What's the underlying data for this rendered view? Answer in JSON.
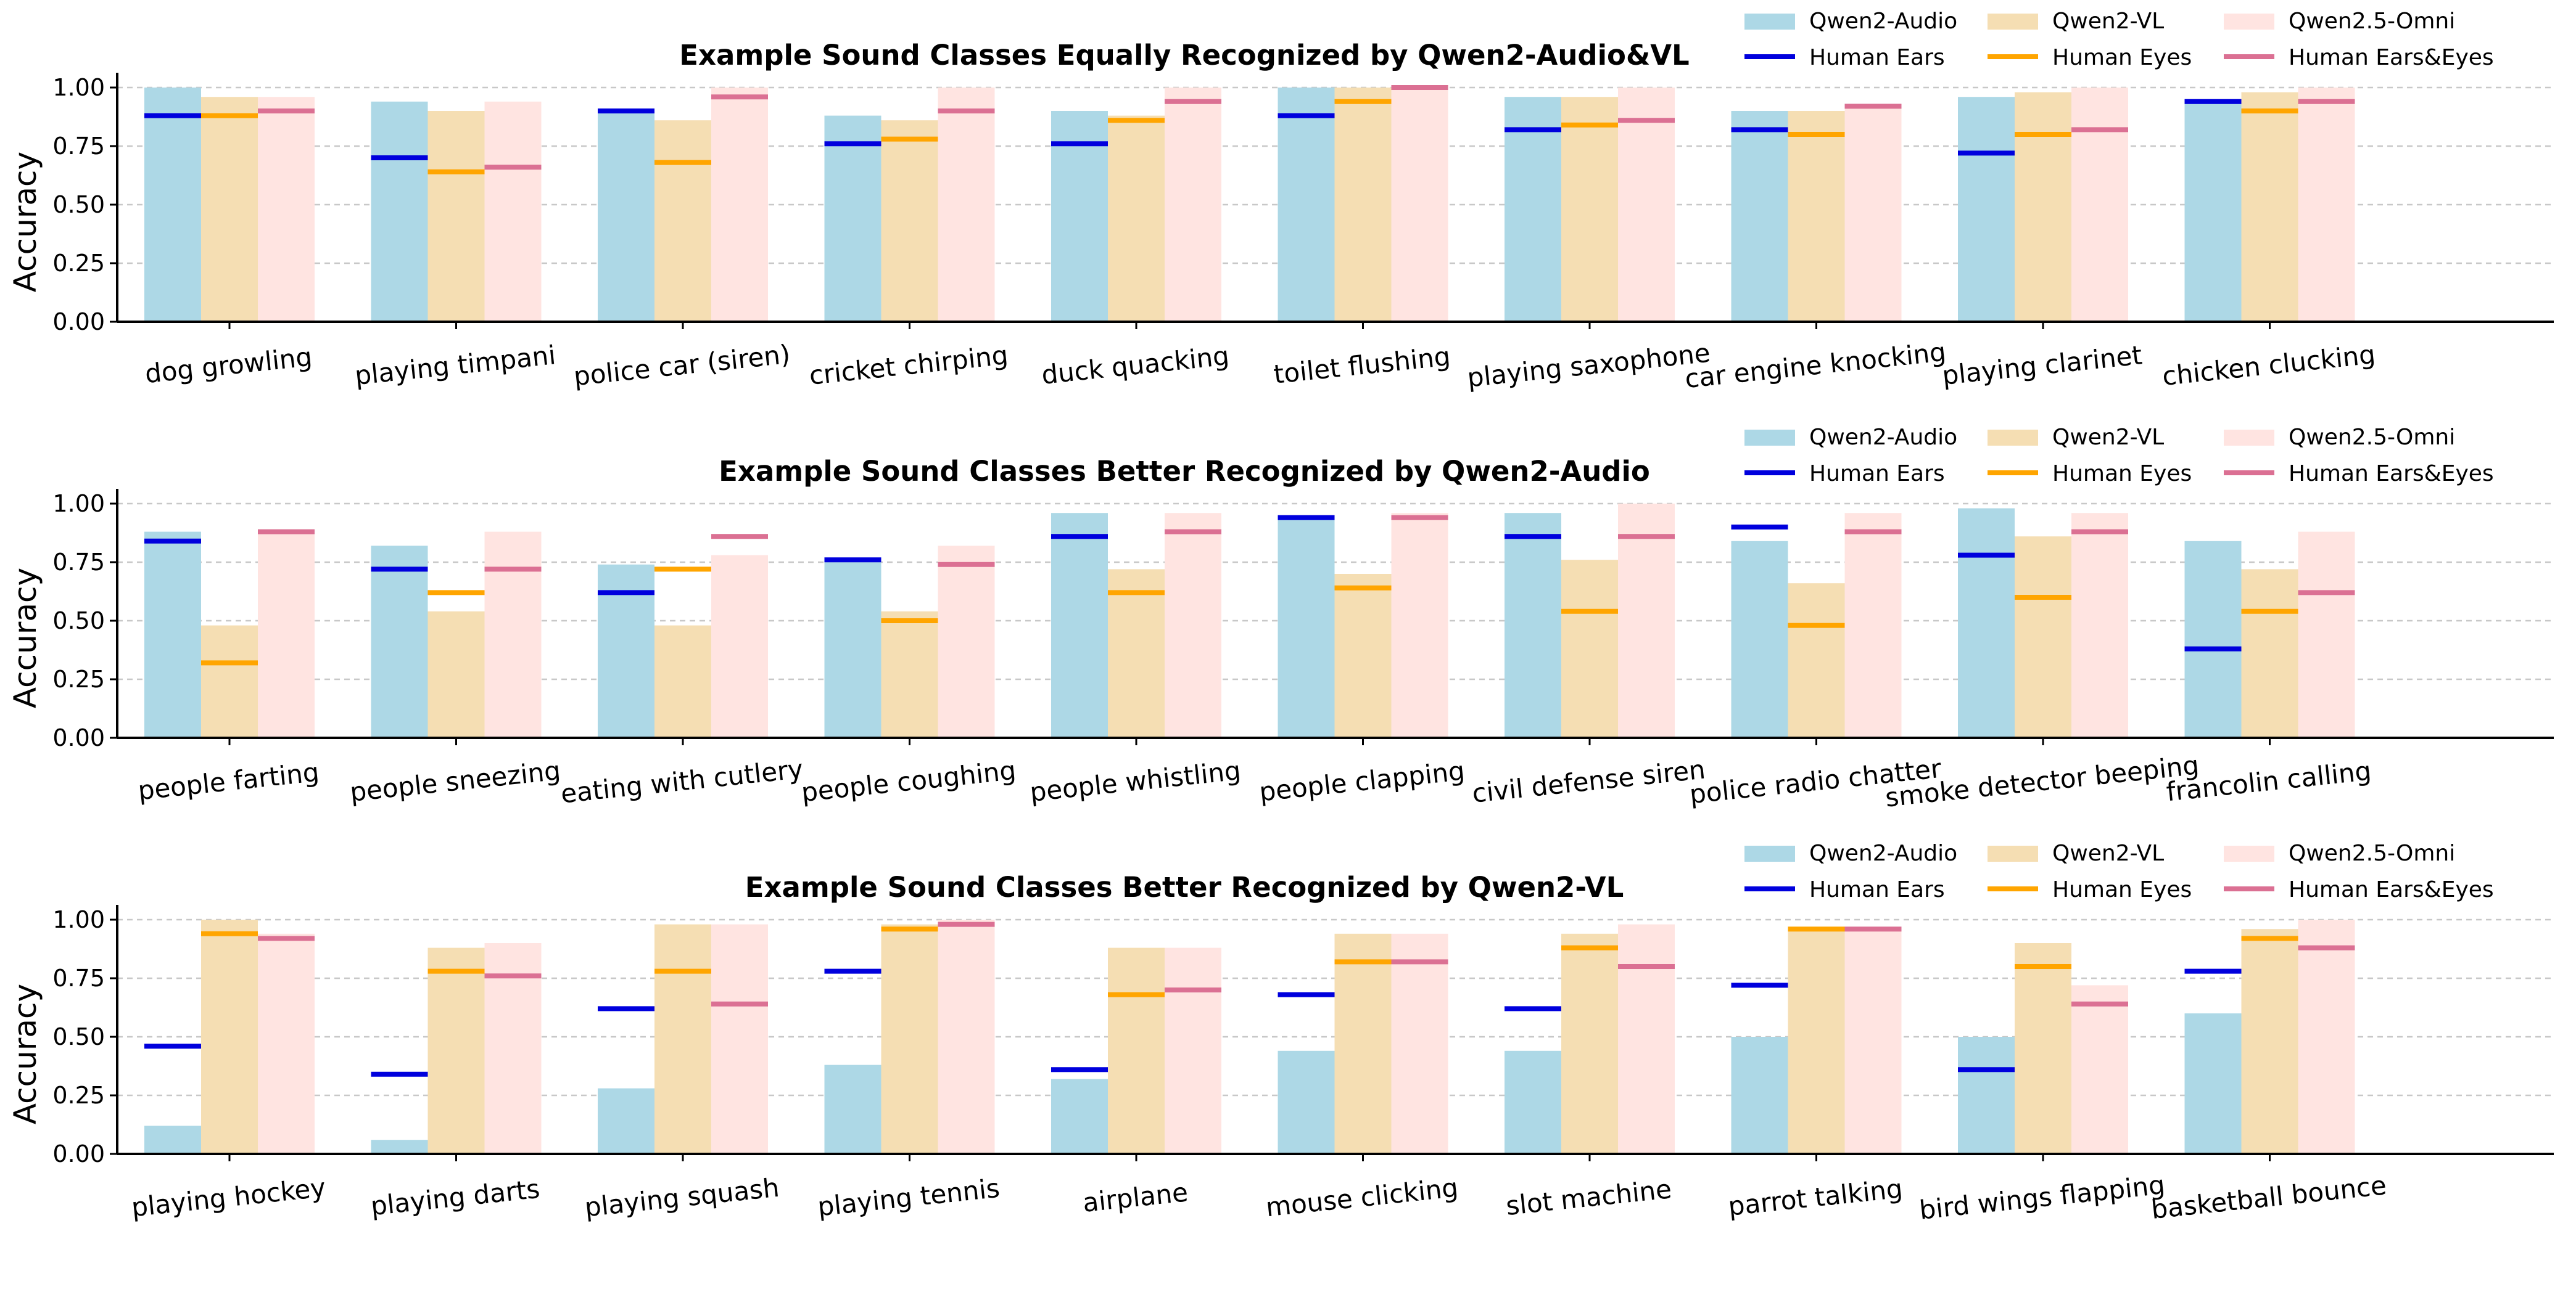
{
  "legend": {
    "series_names": [
      "Qwen2-Audio",
      "Qwen2-VL",
      "Qwen2.5-Omni"
    ],
    "human_names": [
      "Human Ears",
      "Human Eyes",
      "Human Ears&Eyes"
    ]
  },
  "colors": {
    "series": [
      "#ADD8E6",
      "#F5DEB3",
      "#FFE4E1"
    ],
    "human": [
      "#0000DD",
      "#FFA500",
      "#DB7093"
    ],
    "grid": "#c8c8c8",
    "axis": "#000000"
  },
  "chart_data": [
    {
      "type": "bar",
      "title": "Example Sound Classes Equally Recognized by Qwen2-Audio&VL",
      "xlabel": "",
      "ylabel": "Accuracy",
      "ylim": [
        0,
        1.05
      ],
      "yticks": [
        "0.00",
        "0.25",
        "0.50",
        "0.75",
        "1.00"
      ],
      "grid": true,
      "legend_position": "top-right",
      "categories": [
        "dog growling",
        "playing timpani",
        "police car (siren)",
        "cricket chirping",
        "duck quacking",
        "toilet flushing",
        "playing saxophone",
        "car engine knocking",
        "playing clarinet",
        "chicken clucking"
      ],
      "series": [
        {
          "name": "Qwen2-Audio",
          "values": [
            1.0,
            0.94,
            0.9,
            0.88,
            0.9,
            1.0,
            0.96,
            0.9,
            0.96,
            0.94
          ]
        },
        {
          "name": "Qwen2-VL",
          "values": [
            0.96,
            0.9,
            0.86,
            0.86,
            0.88,
            1.0,
            0.96,
            0.9,
            0.98,
            0.98
          ]
        },
        {
          "name": "Qwen2.5-Omni",
          "values": [
            0.96,
            0.94,
            1.0,
            1.0,
            1.0,
            1.0,
            1.0,
            0.92,
            1.0,
            1.0
          ]
        }
      ],
      "human": [
        {
          "name": "Human Ears",
          "values": [
            0.88,
            0.7,
            0.9,
            0.76,
            0.76,
            0.88,
            0.82,
            0.82,
            0.72,
            0.94
          ]
        },
        {
          "name": "Human Eyes",
          "values": [
            0.88,
            0.64,
            0.68,
            0.78,
            0.86,
            0.94,
            0.84,
            0.8,
            0.8,
            0.9
          ]
        },
        {
          "name": "Human Ears&Eyes",
          "values": [
            0.9,
            0.66,
            0.96,
            0.9,
            0.94,
            1.0,
            0.86,
            0.92,
            0.82,
            0.94
          ]
        }
      ]
    },
    {
      "type": "bar",
      "title": "Example Sound Classes Better Recognized by Qwen2-Audio",
      "xlabel": "",
      "ylabel": "Accuracy",
      "ylim": [
        0,
        1.05
      ],
      "yticks": [
        "0.00",
        "0.25",
        "0.50",
        "0.75",
        "1.00"
      ],
      "grid": true,
      "legend_position": "top-right",
      "categories": [
        "people farting",
        "people sneezing",
        "eating with cutlery",
        "people coughing",
        "people whistling",
        "people clapping",
        "civil defense siren",
        "police radio chatter",
        "smoke detector beeping",
        "francolin calling"
      ],
      "series": [
        {
          "name": "Qwen2-Audio",
          "values": [
            0.88,
            0.82,
            0.74,
            0.76,
            0.96,
            0.94,
            0.96,
            0.84,
            0.98,
            0.84
          ]
        },
        {
          "name": "Qwen2-VL",
          "values": [
            0.48,
            0.54,
            0.48,
            0.54,
            0.72,
            0.7,
            0.76,
            0.66,
            0.86,
            0.72
          ]
        },
        {
          "name": "Qwen2.5-Omni",
          "values": [
            0.88,
            0.88,
            0.78,
            0.82,
            0.96,
            0.96,
            1.0,
            0.96,
            0.96,
            0.88
          ]
        }
      ],
      "human": [
        {
          "name": "Human Ears",
          "values": [
            0.84,
            0.72,
            0.62,
            0.76,
            0.86,
            0.94,
            0.86,
            0.9,
            0.78,
            0.38
          ]
        },
        {
          "name": "Human Eyes",
          "values": [
            0.32,
            0.62,
            0.72,
            0.5,
            0.62,
            0.64,
            0.54,
            0.48,
            0.6,
            0.54
          ]
        },
        {
          "name": "Human Ears&Eyes",
          "values": [
            0.88,
            0.72,
            0.86,
            0.74,
            0.88,
            0.94,
            0.86,
            0.88,
            0.88,
            0.62
          ]
        }
      ]
    },
    {
      "type": "bar",
      "title": "Example Sound Classes Better Recognized by Qwen2-VL",
      "xlabel": "",
      "ylabel": "Accuracy",
      "ylim": [
        0,
        1.05
      ],
      "yticks": [
        "0.00",
        "0.25",
        "0.50",
        "0.75",
        "1.00"
      ],
      "grid": true,
      "legend_position": "top-right",
      "categories": [
        "playing hockey",
        "playing darts",
        "playing squash",
        "playing tennis",
        "airplane",
        "mouse clicking",
        "slot machine",
        "parrot talking",
        "bird wings flapping",
        "basketball bounce"
      ],
      "series": [
        {
          "name": "Qwen2-Audio",
          "values": [
            0.12,
            0.06,
            0.28,
            0.38,
            0.32,
            0.44,
            0.44,
            0.5,
            0.5,
            0.6
          ]
        },
        {
          "name": "Qwen2-VL",
          "values": [
            1.0,
            0.88,
            0.98,
            0.98,
            0.88,
            0.94,
            0.94,
            0.96,
            0.9,
            0.96
          ]
        },
        {
          "name": "Qwen2.5-Omni",
          "values": [
            0.94,
            0.9,
            0.98,
            1.0,
            0.88,
            0.94,
            0.98,
            0.96,
            0.72,
            1.0
          ]
        }
      ],
      "human": [
        {
          "name": "Human Ears",
          "values": [
            0.46,
            0.34,
            0.62,
            0.78,
            0.36,
            0.68,
            0.62,
            0.72,
            0.36,
            0.78
          ]
        },
        {
          "name": "Human Eyes",
          "values": [
            0.94,
            0.78,
            0.78,
            0.96,
            0.68,
            0.82,
            0.88,
            0.96,
            0.8,
            0.92
          ]
        },
        {
          "name": "Human Ears&Eyes",
          "values": [
            0.92,
            0.76,
            0.64,
            0.98,
            0.7,
            0.82,
            0.8,
            0.96,
            0.64,
            0.88
          ]
        }
      ]
    }
  ]
}
